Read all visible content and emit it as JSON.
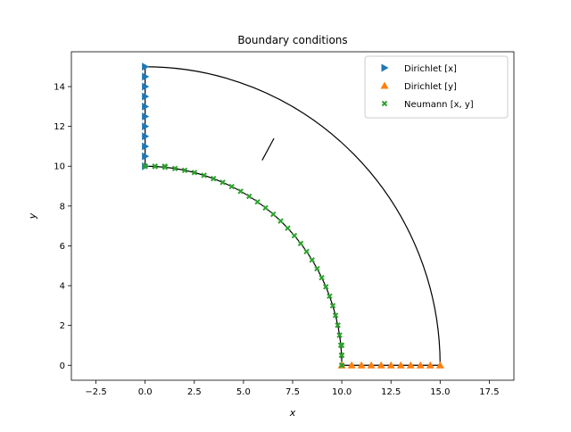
{
  "chart_data": {
    "type": "scatter",
    "title": "Boundary conditions",
    "xlabel": "x",
    "ylabel": "y",
    "xlim": [
      -3.75,
      18.75
    ],
    "ylim": [
      -0.75,
      15.75
    ],
    "xticks": [
      -2.5,
      0.0,
      2.5,
      5.0,
      7.5,
      10.0,
      12.5,
      15.0,
      17.5
    ],
    "xtick_labels": [
      "−2.5",
      "0.0",
      "2.5",
      "5.0",
      "7.5",
      "10.0",
      "12.5",
      "15.0",
      "17.5"
    ],
    "yticks": [
      0,
      2,
      4,
      6,
      8,
      10,
      12,
      14
    ],
    "ytick_labels": [
      "0",
      "2",
      "4",
      "6",
      "8",
      "10",
      "12",
      "14"
    ],
    "grid": false,
    "legend_position": "top-right",
    "geometry": {
      "inner_radius": 10,
      "outer_radius": 15,
      "line_color": "#000000",
      "stray_segment": [
        [
          5.95,
          10.3
        ],
        [
          6.55,
          11.4
        ]
      ]
    },
    "series": [
      {
        "name": "Dirichlet  [x]",
        "marker": "triangle-right",
        "color": "#1f77b4",
        "x": [
          0,
          0,
          0,
          0,
          0,
          0,
          0,
          0,
          0,
          0,
          0
        ],
        "y": [
          10.0,
          10.5,
          11.0,
          11.5,
          12.0,
          12.5,
          13.0,
          13.5,
          14.0,
          14.5,
          15.0
        ]
      },
      {
        "name": "Dirichlet  [y]",
        "marker": "triangle-up",
        "color": "#ff7f0e",
        "x": [
          10.0,
          10.5,
          11.0,
          11.5,
          12.0,
          12.5,
          13.0,
          13.5,
          14.0,
          14.5,
          15.0
        ],
        "y": [
          0,
          0,
          0,
          0,
          0,
          0,
          0,
          0,
          0,
          0,
          0
        ]
      },
      {
        "name": "Neumann  [x, y]",
        "marker": "x-filled",
        "color": "#2ca02c",
        "arc_radius": 10,
        "arc_points": 32,
        "x": [
          0,
          0.5,
          1.0
        ],
        "y": [
          10.0,
          10.0,
          10.0
        ],
        "x_extra": [
          10.0,
          10.0,
          10.0
        ],
        "y_extra": [
          0,
          0.5,
          1.0
        ]
      }
    ]
  }
}
